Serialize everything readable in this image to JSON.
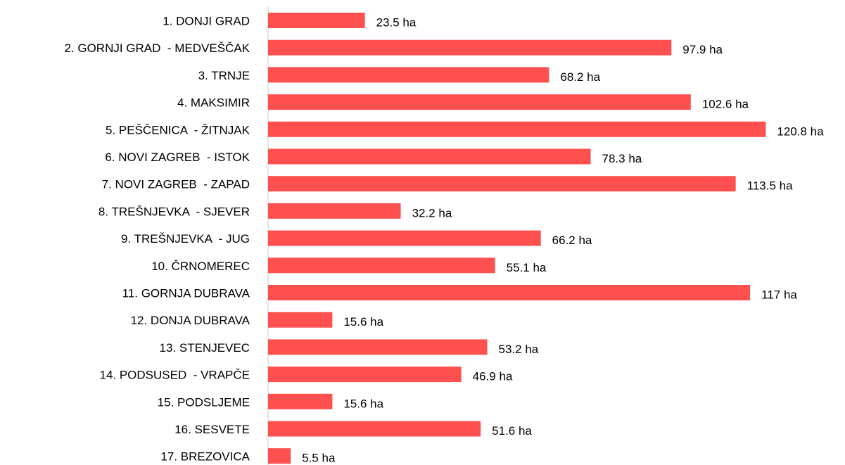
{
  "chart_data": {
    "type": "hbar",
    "categories": [
      "1. DONJI GRAD",
      "2. GORNJI GRAD  - MEDVEŠČAK",
      "3. TRNJE",
      "4. MAKSIMIR",
      "5. PEŠČENICA  - ŽITNJAK",
      "6. NOVI ZAGREB  - ISTOK",
      "7. NOVI ZAGREB  - ZAPAD",
      "8. TREŠNJEVKA  - SJEVER",
      "9. TREŠNJEVKA  - JUG",
      "10. ČRNOMEREC",
      "11. GORNJA DUBRAVA",
      "12. DONJA DUBRAVA",
      "13. STENJEVEC",
      "14. PODSUSED  - VRAPČE",
      "15. PODSLJEME",
      "16. SESVETE",
      "17. BREZOVICA"
    ],
    "values": [
      23.5,
      97.9,
      68.2,
      102.6,
      120.8,
      78.3,
      113.5,
      32.2,
      66.2,
      55.1,
      117,
      15.6,
      53.2,
      46.9,
      15.6,
      51.6,
      5.5
    ],
    "value_labels": [
      "23.5 ha",
      "97.9 ha",
      "68.2 ha",
      "102.6 ha",
      "120.8 ha",
      "78.3 ha",
      "113.5 ha",
      "32.2 ha",
      "66.2 ha",
      "55.1 ha",
      "117 ha",
      "15.6 ha",
      "53.2 ha",
      "46.9 ha",
      "15.6 ha",
      "51.6 ha",
      "5.5 ha"
    ],
    "color": "#ff5050",
    "xlim": [
      0,
      125
    ]
  }
}
